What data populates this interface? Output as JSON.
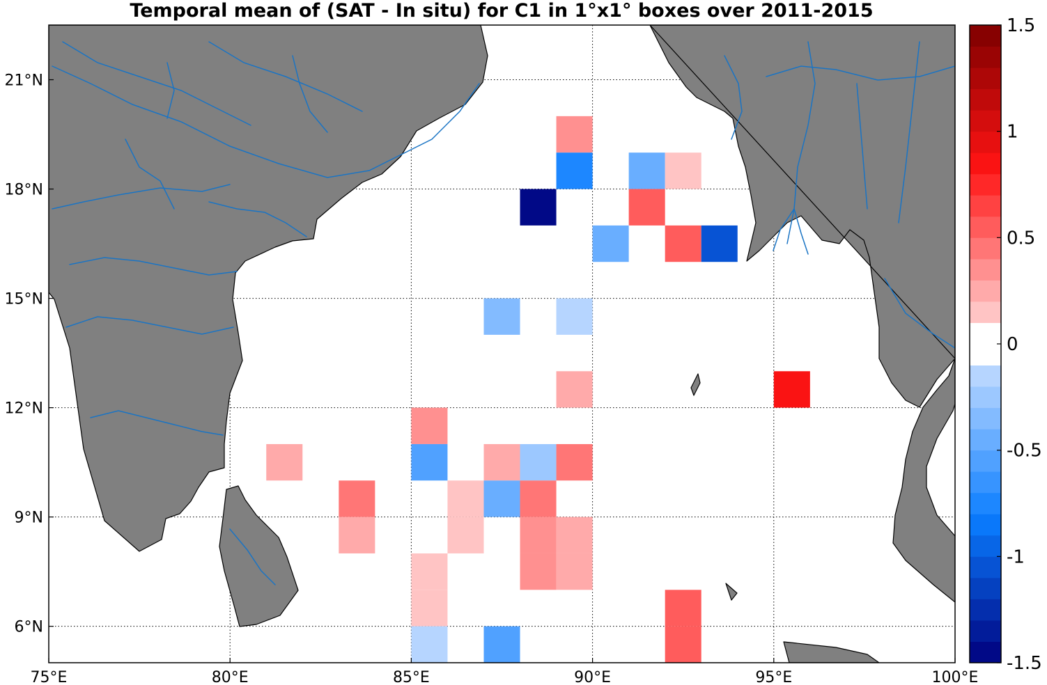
{
  "title": "Temporal mean of (SAT - In situ) for C1 in 1°x1° boxes over 2011-2015",
  "map": {
    "lon_range": [
      75,
      100
    ],
    "lat_range": [
      5,
      22.5
    ],
    "grid": "dotted",
    "land_color": "#808080",
    "ocean_color": "#ffffff",
    "river_color": "#1a74c4",
    "lon_ticks": [
      {
        "value": 75,
        "label": "75°E"
      },
      {
        "value": 80,
        "label": "80°E"
      },
      {
        "value": 85,
        "label": "85°E"
      },
      {
        "value": 90,
        "label": "90°E"
      },
      {
        "value": 95,
        "label": "95°E"
      },
      {
        "value": 100,
        "label": "100°E"
      }
    ],
    "lat_ticks": [
      {
        "value": 6,
        "label": "6°N"
      },
      {
        "value": 9,
        "label": "9°N"
      },
      {
        "value": 12,
        "label": "12°N"
      },
      {
        "value": 15,
        "label": "15°N"
      },
      {
        "value": 18,
        "label": "18°N"
      },
      {
        "value": 21,
        "label": "21°N"
      }
    ]
  },
  "colorbar": {
    "range": [
      -1.5,
      1.5
    ],
    "levels": 30,
    "position": "right",
    "ticks": [
      {
        "value": 1.5,
        "label": "1.5"
      },
      {
        "value": 1,
        "label": "1"
      },
      {
        "value": 0.5,
        "label": "0.5"
      },
      {
        "value": 0,
        "label": "0"
      },
      {
        "value": -0.5,
        "label": "-0.5"
      },
      {
        "value": -1,
        "label": "-1"
      },
      {
        "value": -1.5,
        "label": "-1.5"
      }
    ]
  },
  "chart_data": {
    "type": "heatmap",
    "cell_size_deg": 1,
    "value_range": [
      -1.5,
      1.5
    ],
    "cells": [
      {
        "lon": 89,
        "lat": 19,
        "value": 0.35
      },
      {
        "lon": 89,
        "lat": 18,
        "value": -0.75
      },
      {
        "lon": 91,
        "lat": 18,
        "value": -0.45
      },
      {
        "lon": 92,
        "lat": 18,
        "value": 0.15
      },
      {
        "lon": 88,
        "lat": 17,
        "value": -1.45
      },
      {
        "lon": 91,
        "lat": 17,
        "value": 0.55
      },
      {
        "lon": 90,
        "lat": 16,
        "value": -0.45
      },
      {
        "lon": 92,
        "lat": 16,
        "value": 0.55
      },
      {
        "lon": 93,
        "lat": 16,
        "value": -1.05
      },
      {
        "lon": 87,
        "lat": 14,
        "value": -0.35
      },
      {
        "lon": 89,
        "lat": 14,
        "value": -0.15
      },
      {
        "lon": 89,
        "lat": 12,
        "value": 0.25
      },
      {
        "lon": 95,
        "lat": 12,
        "value": 0.85
      },
      {
        "lon": 85,
        "lat": 11,
        "value": 0.35
      },
      {
        "lon": 81,
        "lat": 10,
        "value": 0.25
      },
      {
        "lon": 85,
        "lat": 10,
        "value": -0.6
      },
      {
        "lon": 87,
        "lat": 10,
        "value": 0.25
      },
      {
        "lon": 88,
        "lat": 10,
        "value": -0.25
      },
      {
        "lon": 89,
        "lat": 10,
        "value": 0.45
      },
      {
        "lon": 83,
        "lat": 9,
        "value": 0.45
      },
      {
        "lon": 86,
        "lat": 9,
        "value": 0.15
      },
      {
        "lon": 87,
        "lat": 9,
        "value": -0.5
      },
      {
        "lon": 88,
        "lat": 9,
        "value": 0.45
      },
      {
        "lon": 83,
        "lat": 8,
        "value": 0.25
      },
      {
        "lon": 86,
        "lat": 8,
        "value": 0.15
      },
      {
        "lon": 88,
        "lat": 8,
        "value": 0.4
      },
      {
        "lon": 89,
        "lat": 8,
        "value": 0.25
      },
      {
        "lon": 85,
        "lat": 7,
        "value": 0.15
      },
      {
        "lon": 88,
        "lat": 7,
        "value": 0.4
      },
      {
        "lon": 89,
        "lat": 7,
        "value": 0.25
      },
      {
        "lon": 85,
        "lat": 6,
        "value": 0.15
      },
      {
        "lon": 92,
        "lat": 6,
        "value": 0.55
      },
      {
        "lon": 85,
        "lat": 5,
        "value": -0.15
      },
      {
        "lon": 87,
        "lat": 5,
        "value": -0.6
      },
      {
        "lon": 92,
        "lat": 5,
        "value": 0.55
      }
    ]
  }
}
